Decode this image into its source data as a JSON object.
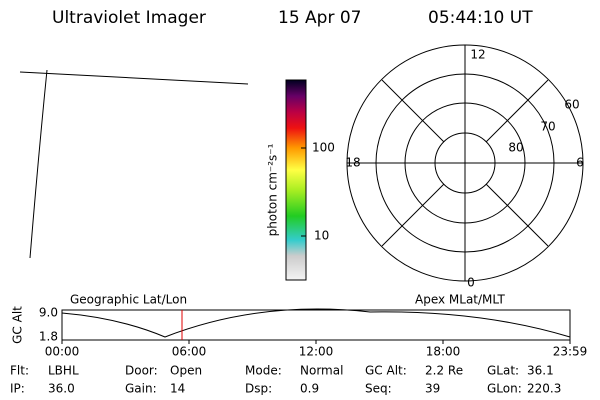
{
  "header": {
    "instrument": "Ultraviolet Imager",
    "date": "15 Apr 07",
    "time": "05:44:10 UT"
  },
  "colorbar": {
    "label": "photon cm⁻²s⁻¹",
    "ticks": [
      "100",
      "10"
    ]
  },
  "polar": {
    "mlt_labels": [
      "12",
      "6",
      "0",
      "18"
    ],
    "lat_labels": [
      "60",
      "70",
      "80"
    ]
  },
  "timeline": {
    "left_title": "Geographic Lat/Lon",
    "right_title": "Apex MLat/MLT",
    "y_label": "GC Alt",
    "y_ticks": [
      "9.0",
      "1.8"
    ],
    "x_ticks": [
      "00:00",
      "06:00",
      "12:00",
      "18:00",
      "23:59"
    ]
  },
  "footer": {
    "rows": [
      [
        {
          "label": "Flt:",
          "value": "LBHL"
        },
        {
          "label": "Door:",
          "value": "Open"
        },
        {
          "label": "Mode:",
          "value": "Normal"
        },
        {
          "label": "GC Alt:",
          "value": "2.2 Re"
        },
        {
          "label": "GLat:",
          "value": "36.1"
        }
      ],
      [
        {
          "label": "IP:",
          "value": "36.0"
        },
        {
          "label": "Gain:",
          "value": "14"
        },
        {
          "label": "Dsp:",
          "value": "0.9"
        },
        {
          "label": "Seq:",
          "value": "39"
        },
        {
          "label": "GLon:",
          "value": "220.3"
        }
      ]
    ]
  }
}
